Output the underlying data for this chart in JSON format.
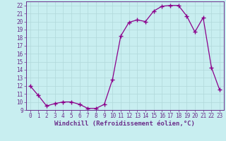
{
  "x": [
    0,
    1,
    2,
    3,
    4,
    5,
    6,
    7,
    8,
    9,
    10,
    11,
    12,
    13,
    14,
    15,
    16,
    17,
    18,
    19,
    20,
    21,
    22,
    23
  ],
  "y": [
    12,
    10.8,
    9.5,
    9.8,
    10,
    10,
    9.7,
    9.2,
    9.2,
    9.7,
    12.8,
    18.2,
    19.9,
    20.2,
    20.0,
    21.3,
    21.9,
    22.0,
    22.0,
    20.7,
    18.7,
    20.5,
    14.3,
    11.5
  ],
  "line_color": "#8b008b",
  "marker": "+",
  "marker_size": 4,
  "background_color": "#c8eef0",
  "grid_color": "#b0d8da",
  "xlabel": "Windchill (Refroidissement éolien,°C)",
  "xlim": [
    -0.5,
    23.5
  ],
  "ylim": [
    9,
    22.5
  ],
  "yticks": [
    9,
    10,
    11,
    12,
    13,
    14,
    15,
    16,
    17,
    18,
    19,
    20,
    21,
    22
  ],
  "xticks": [
    0,
    1,
    2,
    3,
    4,
    5,
    6,
    7,
    8,
    9,
    10,
    11,
    12,
    13,
    14,
    15,
    16,
    17,
    18,
    19,
    20,
    21,
    22,
    23
  ],
  "tick_label_color": "#6b2f8b",
  "tick_fontsize": 5.5,
  "xlabel_fontsize": 6.5,
  "xlabel_color": "#6b2f8b",
  "spine_color": "#6b2f8b"
}
